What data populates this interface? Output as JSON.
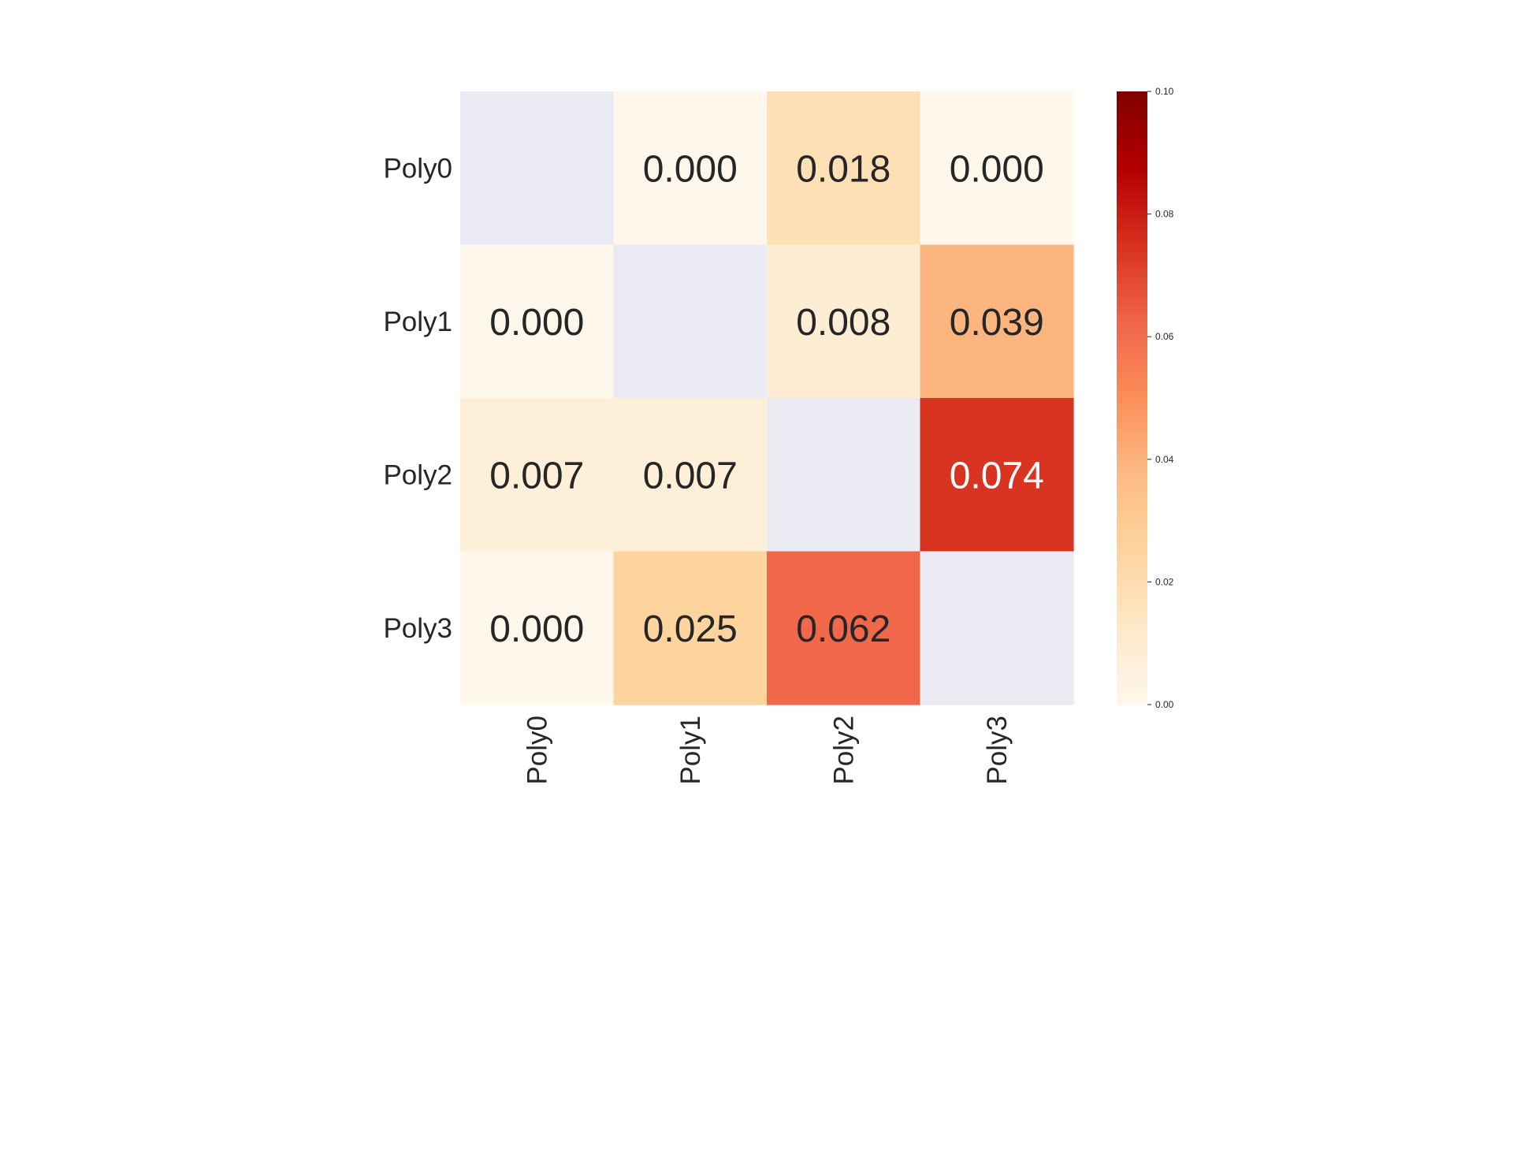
{
  "chart_data": {
    "type": "heatmap",
    "rows": [
      "Poly0",
      "Poly1",
      "Poly2",
      "Poly3"
    ],
    "columns": [
      "Poly0",
      "Poly1",
      "Poly2",
      "Poly3"
    ],
    "values": [
      [
        null,
        0.0,
        0.018,
        0.0
      ],
      [
        0.0,
        null,
        0.008,
        0.039
      ],
      [
        0.007,
        0.007,
        null,
        0.074
      ],
      [
        0.0,
        0.025,
        0.062,
        null
      ]
    ],
    "cell_labels": [
      [
        "",
        "0.000",
        "0.018",
        "0.000"
      ],
      [
        "0.000",
        "",
        "0.008",
        "0.039"
      ],
      [
        "0.007",
        "0.007",
        "",
        "0.074"
      ],
      [
        "0.000",
        "0.025",
        "0.062",
        ""
      ]
    ],
    "colormap": "OrRd",
    "missing_color": "#eaeaf2",
    "colorbar": {
      "range": [
        0.0,
        0.1
      ],
      "ticks": [
        0.0,
        0.02,
        0.04,
        0.06,
        0.08,
        0.1
      ],
      "tick_labels": [
        "0.00",
        "0.02",
        "0.04",
        "0.06",
        "0.08",
        "0.10"
      ],
      "placement": "right"
    },
    "grid": false
  }
}
